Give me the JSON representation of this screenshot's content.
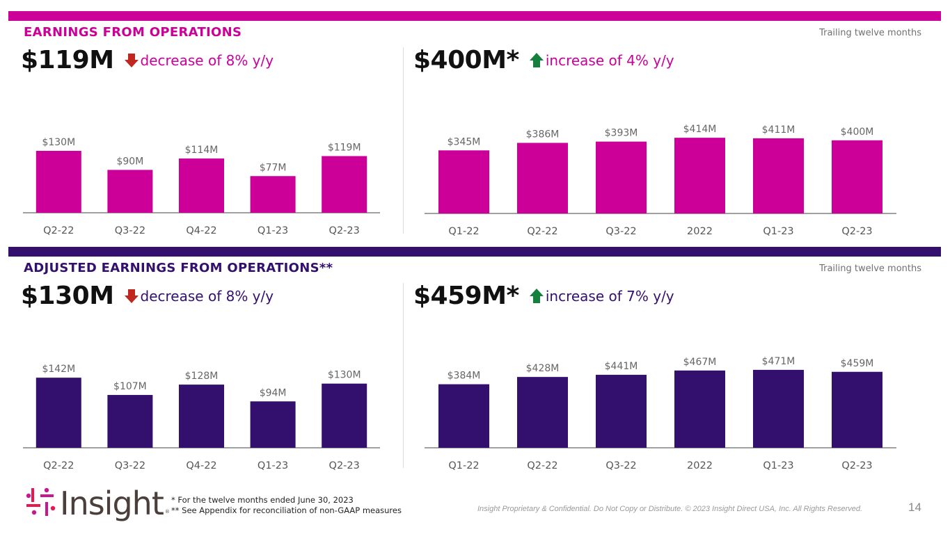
{
  "colors": {
    "magenta": "#cc0099",
    "purple": "#33106e",
    "down_arrow": "#c0281f",
    "up_arrow": "#15803d",
    "label_gray": "#666666"
  },
  "top": {
    "title": "EARNINGS FROM OPERATIONS",
    "ttm_label": "Trailing twelve months",
    "left_kpi": {
      "value": "$119M",
      "arrow": "down-arrow-icon",
      "change": "decrease of 8% y/y"
    },
    "right_kpi": {
      "value": "$400M*",
      "arrow": "up-arrow-icon",
      "change": "increase of 4% y/y"
    }
  },
  "bottom": {
    "title": "ADJUSTED EARNINGS FROM OPERATIONS**",
    "ttm_label": "Trailing twelve months",
    "left_kpi": {
      "value": "$130M",
      "arrow": "down-arrow-icon",
      "change": "decrease of 8% y/y"
    },
    "right_kpi": {
      "value": "$459M*",
      "arrow": "up-arrow-icon",
      "change": "increase of 7% y/y"
    }
  },
  "chart_data": [
    {
      "id": "eo-quarterly",
      "type": "bar",
      "title": "Earnings from Operations (quarterly)",
      "categories": [
        "Q2-22",
        "Q3-22",
        "Q4-22",
        "Q1-23",
        "Q2-23"
      ],
      "values": [
        130,
        90,
        114,
        77,
        119
      ],
      "data_labels": [
        "$130M",
        "$90M",
        "$114M",
        "$77M",
        "$119M"
      ],
      "unit": "$M",
      "color": "#cc0099",
      "grid": false
    },
    {
      "id": "eo-ttm",
      "type": "bar",
      "title": "Earnings from Operations (trailing twelve months)",
      "categories": [
        "Q1-22",
        "Q2-22",
        "Q3-22",
        "2022",
        "Q1-23",
        "Q2-23"
      ],
      "values": [
        345,
        386,
        393,
        414,
        411,
        400
      ],
      "data_labels": [
        "$345M",
        "$386M",
        "$393M",
        "$414M",
        "$411M",
        "$400M"
      ],
      "unit": "$M",
      "color": "#cc0099",
      "grid": false
    },
    {
      "id": "aeo-quarterly",
      "type": "bar",
      "title": "Adjusted Earnings from Operations (quarterly)",
      "categories": [
        "Q2-22",
        "Q3-22",
        "Q4-22",
        "Q1-23",
        "Q2-23"
      ],
      "values": [
        142,
        107,
        128,
        94,
        130
      ],
      "data_labels": [
        "$142M",
        "$107M",
        "$128M",
        "$94M",
        "$130M"
      ],
      "unit": "$M",
      "color": "#33106e",
      "grid": false
    },
    {
      "id": "aeo-ttm",
      "type": "bar",
      "title": "Adjusted Earnings from Operations (trailing twelve months)",
      "categories": [
        "Q1-22",
        "Q2-22",
        "Q3-22",
        "2022",
        "Q1-23",
        "Q2-23"
      ],
      "values": [
        384,
        428,
        441,
        467,
        471,
        459
      ],
      "data_labels": [
        "$384M",
        "$428M",
        "$441M",
        "$467M",
        "$471M",
        "$459M"
      ],
      "unit": "$M",
      "color": "#33106e",
      "grid": false
    }
  ],
  "footer": {
    "logo_text": "Insight",
    "logo_reg": "®",
    "note_1": "* For the twelve months ended June 30, 2023",
    "note_2": "** See Appendix for reconciliation of non-GAAP measures",
    "legal": "Insight Proprietary & Confidential. Do Not Copy or Distribute. © 2023 Insight Direct USA, Inc. All Rights Reserved.",
    "page_number": "14"
  }
}
